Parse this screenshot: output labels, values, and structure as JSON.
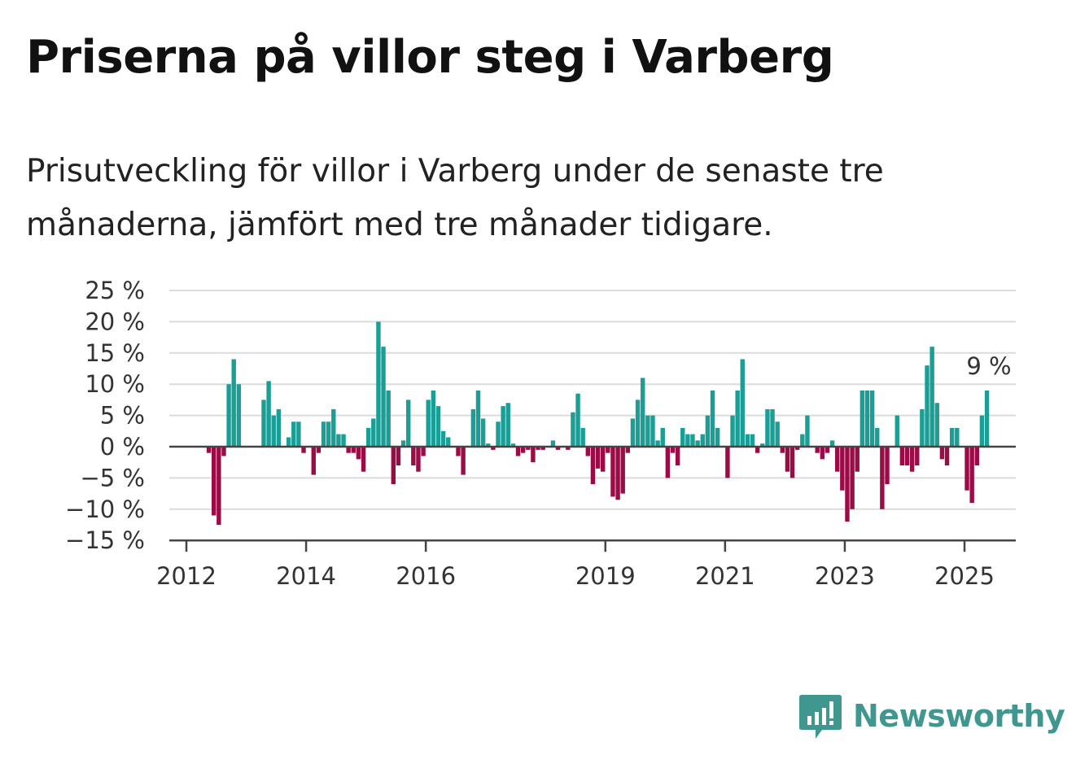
{
  "title": "Priserna på villor steg i Varberg",
  "subtitle": "Prisutveckling för villor i Varberg under de senaste tre månaderna, jämfört med tre månader tidigare.",
  "brand": {
    "name": "Newsworthy",
    "icon": "bar-chart-speech-bubble-icon"
  },
  "colors": {
    "positive": "#1a9e96",
    "negative": "#9b0b46",
    "grid": "#dcdcdc",
    "axis": "#444444",
    "brand": "#3f978f"
  },
  "chart_data": {
    "type": "bar",
    "title": "Priserna på villor steg i Varberg",
    "xlabel": "",
    "ylabel": "",
    "ylim": [
      -15,
      25
    ],
    "y_ticks": [
      {
        "value": 25,
        "label": "25 %"
      },
      {
        "value": 20,
        "label": "20 %"
      },
      {
        "value": 15,
        "label": "15 %"
      },
      {
        "value": 10,
        "label": "10 %"
      },
      {
        "value": 5,
        "label": "5 %"
      },
      {
        "value": 0,
        "label": "0 %"
      },
      {
        "value": -5,
        "label": "−5 %"
      },
      {
        "value": -10,
        "label": "−10 %"
      },
      {
        "value": -15,
        "label": "−15 %"
      }
    ],
    "x_ticks": [
      {
        "value": 2012.0,
        "label": "2012"
      },
      {
        "value": 2014.0,
        "label": "2014"
      },
      {
        "value": 2016.0,
        "label": "2016"
      },
      {
        "value": 2019.0,
        "label": "2019"
      },
      {
        "value": 2021.0,
        "label": "2021"
      },
      {
        "value": 2023.0,
        "label": "2023"
      },
      {
        "value": 2025.0,
        "label": "2025"
      }
    ],
    "x_start": 2012.375,
    "x_step": 0.08333,
    "grid": true,
    "legend": "none",
    "annotation": {
      "label": "9 %",
      "series_point": "last"
    },
    "values": [
      -1,
      -11,
      -12.5,
      -1.5,
      10,
      14,
      10,
      0,
      0,
      0,
      0,
      7.5,
      10.5,
      5,
      6,
      0,
      1.5,
      4,
      4,
      -1,
      0,
      -4.5,
      -1,
      4,
      4,
      6,
      2,
      2,
      -1,
      -1,
      -2,
      -4,
      3,
      4.5,
      20,
      16,
      9,
      -6,
      -3,
      1,
      7.5,
      -3,
      -4,
      -1.5,
      7.5,
      9,
      6.5,
      2.5,
      1.5,
      0,
      -1.5,
      -4.5,
      0,
      6,
      9,
      4.5,
      0.5,
      -0.5,
      4,
      6.5,
      7,
      0.5,
      -1.5,
      -1,
      -0.5,
      -2.5,
      -0.5,
      -0.5,
      0,
      1,
      -0.5,
      0,
      -0.5,
      5.5,
      8.5,
      3,
      -1.5,
      -6,
      -3.5,
      -4,
      -1,
      -8,
      -8.5,
      -7.5,
      -1,
      4.5,
      7.5,
      11,
      5,
      5,
      1,
      3,
      -5,
      -1,
      -3,
      3,
      2,
      2,
      1,
      2,
      5,
      9,
      3,
      0,
      -5,
      5,
      9,
      14,
      2,
      2,
      -1,
      0.5,
      6,
      6,
      4,
      -1,
      -4,
      -5,
      -0.5,
      2,
      5,
      0,
      -1,
      -2,
      -1,
      1,
      -4,
      -7,
      -12,
      -10,
      -4,
      9,
      9,
      9,
      3,
      -10,
      -6,
      0,
      5,
      -3,
      -3,
      -4,
      -3,
      6,
      13,
      16,
      7,
      -2,
      -3,
      3,
      3,
      0,
      -7,
      -9,
      -3,
      5,
      9
    ]
  }
}
